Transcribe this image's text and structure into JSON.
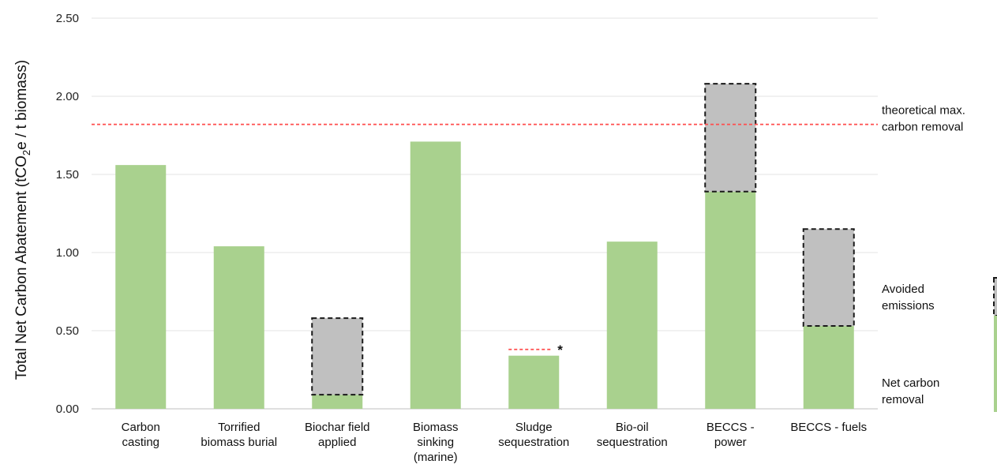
{
  "chart_data": {
    "type": "bar",
    "ylabel_parts": [
      "Total Net Carbon Abatement (tCO",
      "2",
      "e / t biomass)"
    ],
    "xlabel": "",
    "ylim": [
      0,
      2.5
    ],
    "yticks": [
      "0.00",
      "0.50",
      "1.00",
      "1.50",
      "2.00",
      "2.50"
    ],
    "ytick_values": [
      0,
      0.5,
      1.0,
      1.5,
      2.0,
      2.5
    ],
    "grid": true,
    "categories": [
      [
        "Carbon",
        "casting"
      ],
      [
        "Torrified",
        "biomass burial"
      ],
      [
        "Biochar field",
        "applied"
      ],
      [
        "Biomass",
        "sinking",
        "(marine)"
      ],
      [
        "Sludge",
        "sequestration"
      ],
      [
        "Bio-oil",
        "sequestration"
      ],
      [
        "BECCS -",
        "power"
      ],
      [
        "BECCS - fuels"
      ]
    ],
    "series": [
      {
        "name": "Net carbon removal",
        "color": "#a9d18e",
        "values": [
          1.56,
          1.04,
          0.09,
          1.71,
          0.34,
          1.07,
          1.39,
          0.53
        ]
      },
      {
        "name": "Avoided emissions",
        "color": "#c0c0c0",
        "values": [
          0,
          0,
          0.49,
          0,
          0,
          0,
          0.69,
          0.62
        ]
      }
    ],
    "reference_line": {
      "value": 1.82,
      "color": "#ff4d4d",
      "label": [
        "theoretical max.",
        "carbon removal"
      ]
    },
    "sludge_marker": {
      "category_index": 4,
      "value": 0.38,
      "label": "*"
    },
    "legend": {
      "placement": "right",
      "entries": [
        {
          "label": [
            "Avoided",
            "emissions"
          ],
          "series": "Avoided emissions"
        },
        {
          "label": [
            "Net carbon",
            "removal"
          ],
          "series": "Net carbon removal"
        }
      ]
    }
  }
}
